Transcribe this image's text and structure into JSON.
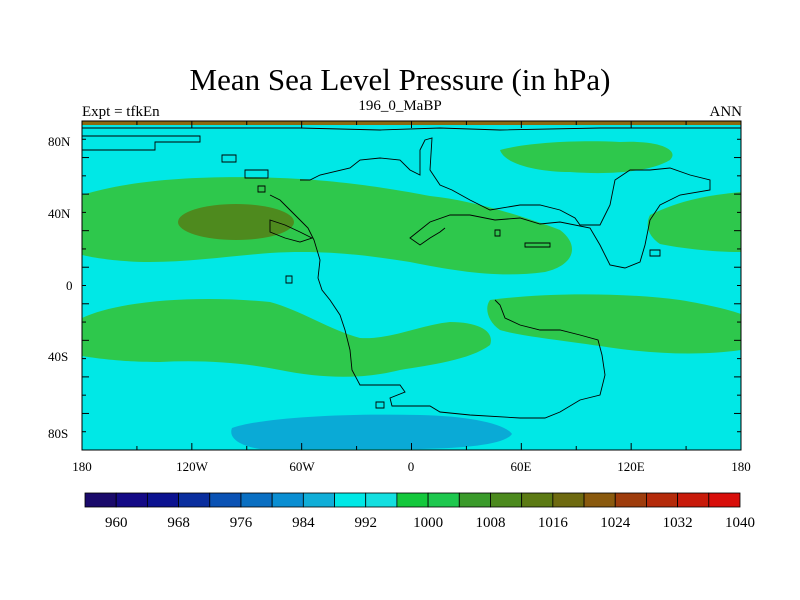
{
  "title": "Mean Sea Level Pressure (in hPa)",
  "subtitle_left": "Expt = tfkEn",
  "subtitle_center": "196_0_MaBP",
  "subtitle_right": "ANN",
  "lat_ticks": [
    "80N",
    "40N",
    "0",
    "40S",
    "80S"
  ],
  "lon_ticks": [
    "180",
    "120W",
    "60W",
    "0",
    "60E",
    "120E",
    "180"
  ],
  "colorbar": {
    "colors": [
      "#1a0a6b",
      "#140a86",
      "#0b1290",
      "#0a2e9e",
      "#0a52b4",
      "#0a6fc2",
      "#0a8ed2",
      "#10aed8",
      "#00e8e6",
      "#14dfe0",
      "#14c83c",
      "#1ec84e",
      "#3a9a2a",
      "#4c8a1e",
      "#5c7a14",
      "#6e6a10",
      "#8a5a0e",
      "#9e3c0c",
      "#b42a0a",
      "#c81a0a",
      "#d80e0a"
    ],
    "labels": [
      "960",
      "968",
      "976",
      "984",
      "992",
      "1000",
      "1008",
      "1016",
      "1024",
      "1032",
      "1040"
    ]
  },
  "map_colors": {
    "ocean_base": "#00e8e6",
    "band_green": "#2ec84c",
    "high_olive": "#4e8a1e",
    "low_blue": "#0aaad6",
    "top_strip": "#8a6a10"
  }
}
